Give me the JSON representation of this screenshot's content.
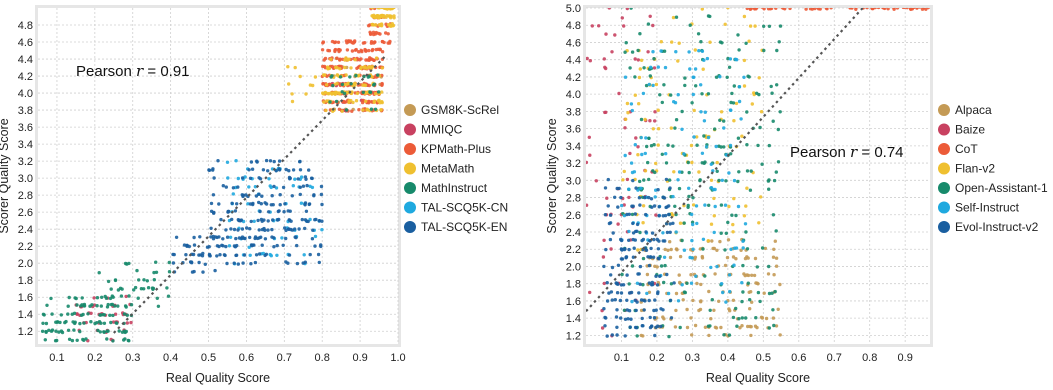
{
  "chart_data": [
    {
      "type": "scatter",
      "xlabel": "Real Quality Score",
      "ylabel": "Scorer Quality Score",
      "xlim": [
        0.05,
        1.0
      ],
      "ylim": [
        1.05,
        5.0
      ],
      "x_ticks": [
        "0.1",
        "0.2",
        "0.3",
        "0.4",
        "0.5",
        "0.6",
        "0.7",
        "0.8",
        "0.9",
        "1.0"
      ],
      "y_ticks": [
        "1.2",
        "1.4",
        "1.6",
        "1.8",
        "2.0",
        "2.2",
        "2.4",
        "2.6",
        "2.8",
        "3.0",
        "3.2",
        "3.4",
        "3.6",
        "3.8",
        "4.0",
        "4.2",
        "4.4",
        "4.6",
        "4.8"
      ],
      "grid": true,
      "annotation": {
        "prefix": "Pearson ",
        "r": "r",
        "value": " = 0.91"
      },
      "legend_position": "right",
      "series": [
        {
          "name": "GSM8K-ScRel",
          "color": "#C49A55",
          "clusters": [
            {
              "x": [
                0.83,
                0.96
              ],
              "y": [
                3.7,
                4.4
              ],
              "n": 20
            }
          ]
        },
        {
          "name": "MMIQC",
          "color": "#C84160",
          "clusters": [
            {
              "x": [
                0.15,
                0.3
              ],
              "y": [
                1.1,
                1.6
              ],
              "n": 40
            },
            {
              "x": [
                0.82,
                0.93
              ],
              "y": [
                3.8,
                4.2
              ],
              "n": 20
            }
          ]
        },
        {
          "name": "KPMath-Plus",
          "color": "#EC5B38",
          "clusters": [
            {
              "x": [
                0.8,
                0.96
              ],
              "y": [
                3.8,
                4.6
              ],
              "n": 240
            },
            {
              "x": [
                0.92,
                0.98
              ],
              "y": [
                4.6,
                5.0
              ],
              "n": 40
            }
          ]
        },
        {
          "name": "MetaMath",
          "color": "#EFC030",
          "clusters": [
            {
              "x": [
                0.8,
                0.96
              ],
              "y": [
                3.8,
                4.4
              ],
              "n": 120
            },
            {
              "x": [
                0.93,
                0.99
              ],
              "y": [
                4.8,
                5.0
              ],
              "n": 70
            },
            {
              "x": [
                0.7,
                0.85
              ],
              "y": [
                3.9,
                4.3
              ],
              "n": 15
            }
          ]
        },
        {
          "name": "MathInstruct",
          "color": "#178A6B",
          "clusters": [
            {
              "x": [
                0.06,
                0.3
              ],
              "y": [
                1.05,
                1.6
              ],
              "n": 110
            },
            {
              "x": [
                0.2,
                0.4
              ],
              "y": [
                1.5,
                2.0
              ],
              "n": 40
            },
            {
              "x": [
                0.82,
                0.95
              ],
              "y": [
                3.8,
                4.2
              ],
              "n": 25
            }
          ]
        },
        {
          "name": "TAL-SCQ5K-CN",
          "color": "#1FA9DF",
          "clusters": [
            {
              "x": [
                0.55,
                0.8
              ],
              "y": [
                2.0,
                3.2
              ],
              "n": 70
            }
          ]
        },
        {
          "name": "TAL-SCQ5K-EN",
          "color": "#1A5FA0",
          "clusters": [
            {
              "x": [
                0.5,
                0.8
              ],
              "y": [
                2.0,
                3.2
              ],
              "n": 220
            },
            {
              "x": [
                0.4,
                0.55
              ],
              "y": [
                1.9,
                2.3
              ],
              "n": 40
            }
          ]
        }
      ]
    },
    {
      "type": "scatter",
      "xlabel": "Real Quality Score",
      "ylabel": "Scorer Quality Score",
      "xlim": [
        0.0,
        0.97
      ],
      "ylim": [
        1.1,
        5.0
      ],
      "x_ticks": [
        "0.1",
        "0.2",
        "0.3",
        "0.4",
        "0.5",
        "0.6",
        "0.7",
        "0.8",
        "0.9"
      ],
      "y_ticks": [
        "1.2",
        "1.4",
        "1.6",
        "1.8",
        "2.0",
        "2.2",
        "2.4",
        "2.6",
        "2.8",
        "3.0",
        "3.2",
        "3.4",
        "3.6",
        "3.8",
        "4.0",
        "4.2",
        "4.4",
        "4.6",
        "4.8",
        "5.0"
      ],
      "grid": true,
      "annotation": {
        "prefix": "Pearson ",
        "r": "r",
        "value": " = 0.74"
      },
      "legend_position": "right",
      "series": [
        {
          "name": "Alpaca",
          "color": "#C49A55",
          "clusters": [
            {
              "x": [
                0.15,
                0.55
              ],
              "y": [
                1.2,
                2.3
              ],
              "n": 160
            }
          ]
        },
        {
          "name": "Baize",
          "color": "#C84160",
          "clusters": [
            {
              "x": [
                0.0,
                0.2
              ],
              "y": [
                1.2,
                5.0
              ],
              "n": 70
            }
          ]
        },
        {
          "name": "CoT",
          "color": "#EC5B38",
          "clusters": [
            {
              "x": [
                0.45,
                0.97
              ],
              "y": [
                4.95,
                5.0
              ],
              "n": 70
            }
          ]
        },
        {
          "name": "Flan-v2",
          "color": "#EFC030",
          "clusters": [
            {
              "x": [
                0.1,
                0.5
              ],
              "y": [
                2.2,
                5.0
              ],
              "n": 110
            }
          ]
        },
        {
          "name": "Open-Assistant-1",
          "color": "#178A6B",
          "clusters": [
            {
              "x": [
                0.1,
                0.55
              ],
              "y": [
                1.2,
                5.0
              ],
              "n": 230
            }
          ]
        },
        {
          "name": "Self-Instruct",
          "color": "#1FA9DF",
          "clusters": [
            {
              "x": [
                0.1,
                0.45
              ],
              "y": [
                1.5,
                4.5
              ],
              "n": 130
            }
          ]
        },
        {
          "name": "Evol-Instruct-v2",
          "color": "#1A5FA0",
          "clusters": [
            {
              "x": [
                0.05,
                0.25
              ],
              "y": [
                1.2,
                3.0
              ],
              "n": 180
            }
          ]
        }
      ]
    }
  ]
}
